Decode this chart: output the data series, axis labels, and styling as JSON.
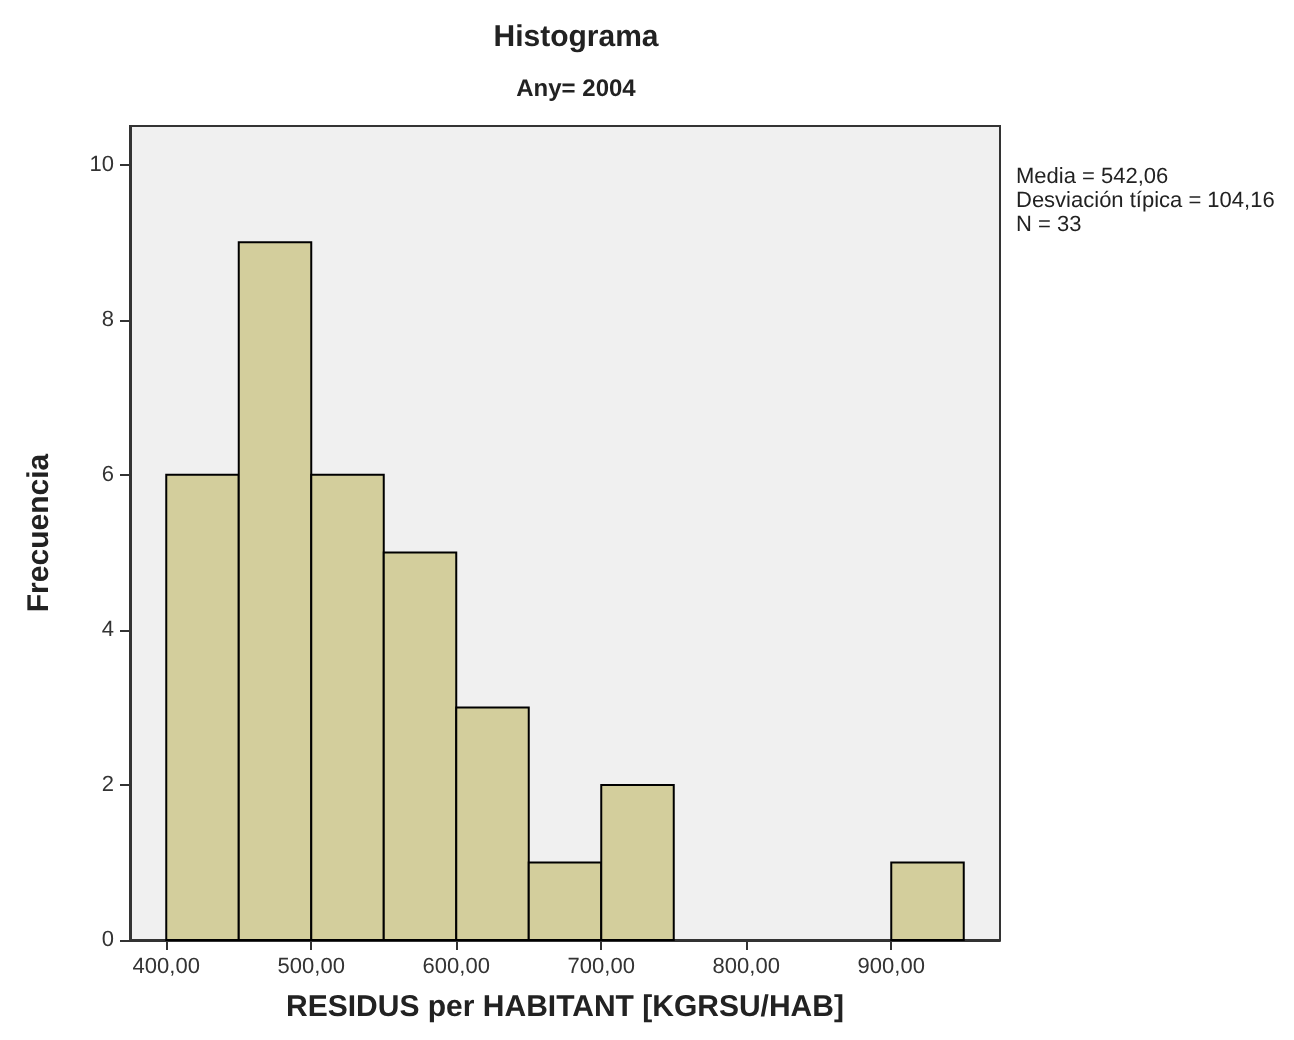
{
  "chart_data": {
    "type": "histogram",
    "title": "Histograma",
    "subtitle": "Any= 2004",
    "xlabel": "RESIDUS per HABITANT [KGRSU/HAB]",
    "ylabel": "Frecuencia",
    "bins": [
      400,
      450,
      500,
      550,
      600,
      650,
      700,
      750,
      800,
      850,
      900,
      950
    ],
    "values": [
      6,
      9,
      6,
      5,
      3,
      1,
      2,
      0,
      0,
      0,
      1
    ],
    "color": "#d3ce9c",
    "xlim": [
      375,
      975
    ],
    "ylim": [
      0,
      10.5
    ],
    "xticks": [
      {
        "value": 400,
        "label": "400,00"
      },
      {
        "value": 500,
        "label": "500,00"
      },
      {
        "value": 600,
        "label": "600,00"
      },
      {
        "value": 700,
        "label": "700,00"
      },
      {
        "value": 800,
        "label": "800,00"
      },
      {
        "value": 900,
        "label": "900,00"
      }
    ],
    "yticks": [
      0,
      2,
      4,
      6,
      8,
      10
    ],
    "grid": false,
    "annotations": [
      "Media = 542,06",
      "Desviación típica = 104,16",
      "N = 33"
    ]
  }
}
